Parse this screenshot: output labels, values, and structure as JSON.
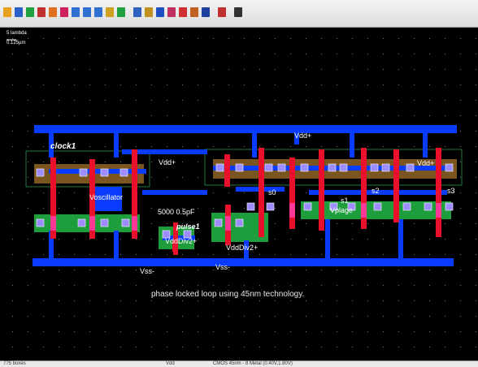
{
  "toolbar": {
    "icons": [
      "open-icon",
      "save-icon",
      "pencil-icon",
      "line-icon",
      "layer-icon",
      "paint-icon",
      "zoom-in-icon",
      "zoom-out-icon",
      "zoom-fit-icon",
      "run-icon",
      "play-icon",
      "cut-icon",
      "connect-icon",
      "select-icon",
      "move-icon",
      "text-icon",
      "cell-icon",
      "eye-icon",
      "flag-icon",
      "pan-icon"
    ]
  },
  "canvas": {
    "scale_label": "5 lambda",
    "scale_sub": "0.125µm",
    "caption": "phase locked loop using 45nm technology."
  },
  "labels": {
    "vdd_left": "Vdd+",
    "vdd_top": "Vdd+",
    "vdd_right": "Vdd+",
    "clock": "clock1",
    "oscillator": "Voscillator",
    "cap": "5000 0.5pF",
    "pulse": "pulse1",
    "vdddiv_a": "VddDiv2+",
    "vdddiv_b": "VddDiv2+",
    "vss_mid": "Vss-",
    "vss_right": "Vss-",
    "s0": "s0",
    "s1": "s1",
    "s2": "s2",
    "s3": "s3",
    "vplage": "Vplage"
  },
  "status": {
    "left": "775 boxes",
    "mid": "Vdd",
    "right": "CMOS 45nm - 8 Metal (0.40V,1.80V)"
  },
  "colors": {
    "metal1": "#0a3cff",
    "poly": "#e8102a",
    "active": "#1e9d3c",
    "nwell": "#8a6020",
    "contact": "#b0a0ff",
    "background": "#000000"
  }
}
